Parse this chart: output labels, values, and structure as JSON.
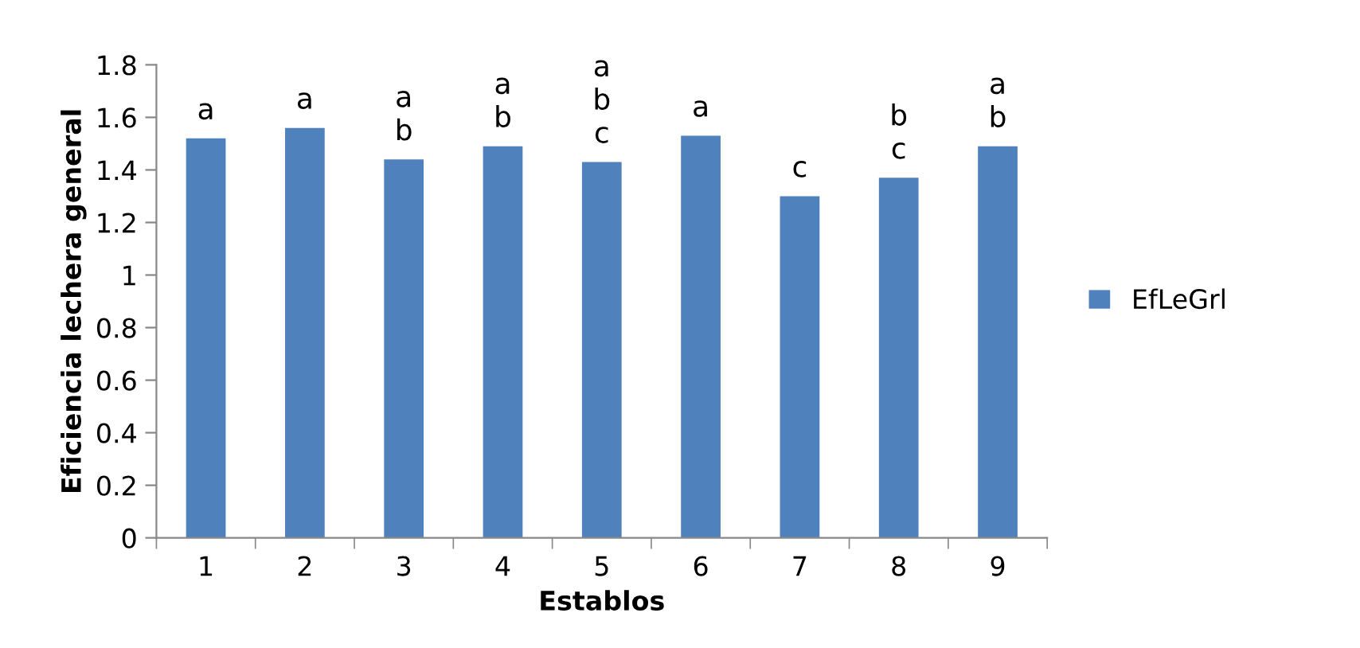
{
  "chart_data": {
    "type": "bar",
    "xlabel": "Establos",
    "ylabel": "Eficiencia lechera general",
    "categories": [
      "1",
      "2",
      "3",
      "4",
      "5",
      "6",
      "7",
      "8",
      "9"
    ],
    "series": [
      {
        "name": "EfLeGrl",
        "color": "#4f81bd",
        "values": [
          1.52,
          1.56,
          1.44,
          1.49,
          1.43,
          1.53,
          1.3,
          1.37,
          1.49
        ]
      }
    ],
    "ylim": [
      0,
      1.8
    ],
    "yticks": [
      0,
      0.2,
      0.4,
      0.6,
      0.8,
      1,
      1.2,
      1.4,
      1.6,
      1.8
    ],
    "grid": false,
    "legend": "right",
    "annotations": [
      {
        "text": "a",
        "x": "1",
        "y": 1.52
      },
      {
        "text": "a",
        "x": "2",
        "y": 1.56
      },
      {
        "text": "a\nb",
        "x": "3",
        "y": 1.44
      },
      {
        "text": "a\nb",
        "x": "4",
        "y": 1.49
      },
      {
        "text": "a\nb\nc",
        "x": "5",
        "y": 1.43
      },
      {
        "text": "a",
        "x": "6",
        "y": 1.53
      },
      {
        "text": "c",
        "x": "7",
        "y": 1.3
      },
      {
        "text": "b\nc",
        "x": "8",
        "y": 1.37
      },
      {
        "text": "a\nb",
        "x": "9",
        "y": 1.49
      }
    ]
  }
}
